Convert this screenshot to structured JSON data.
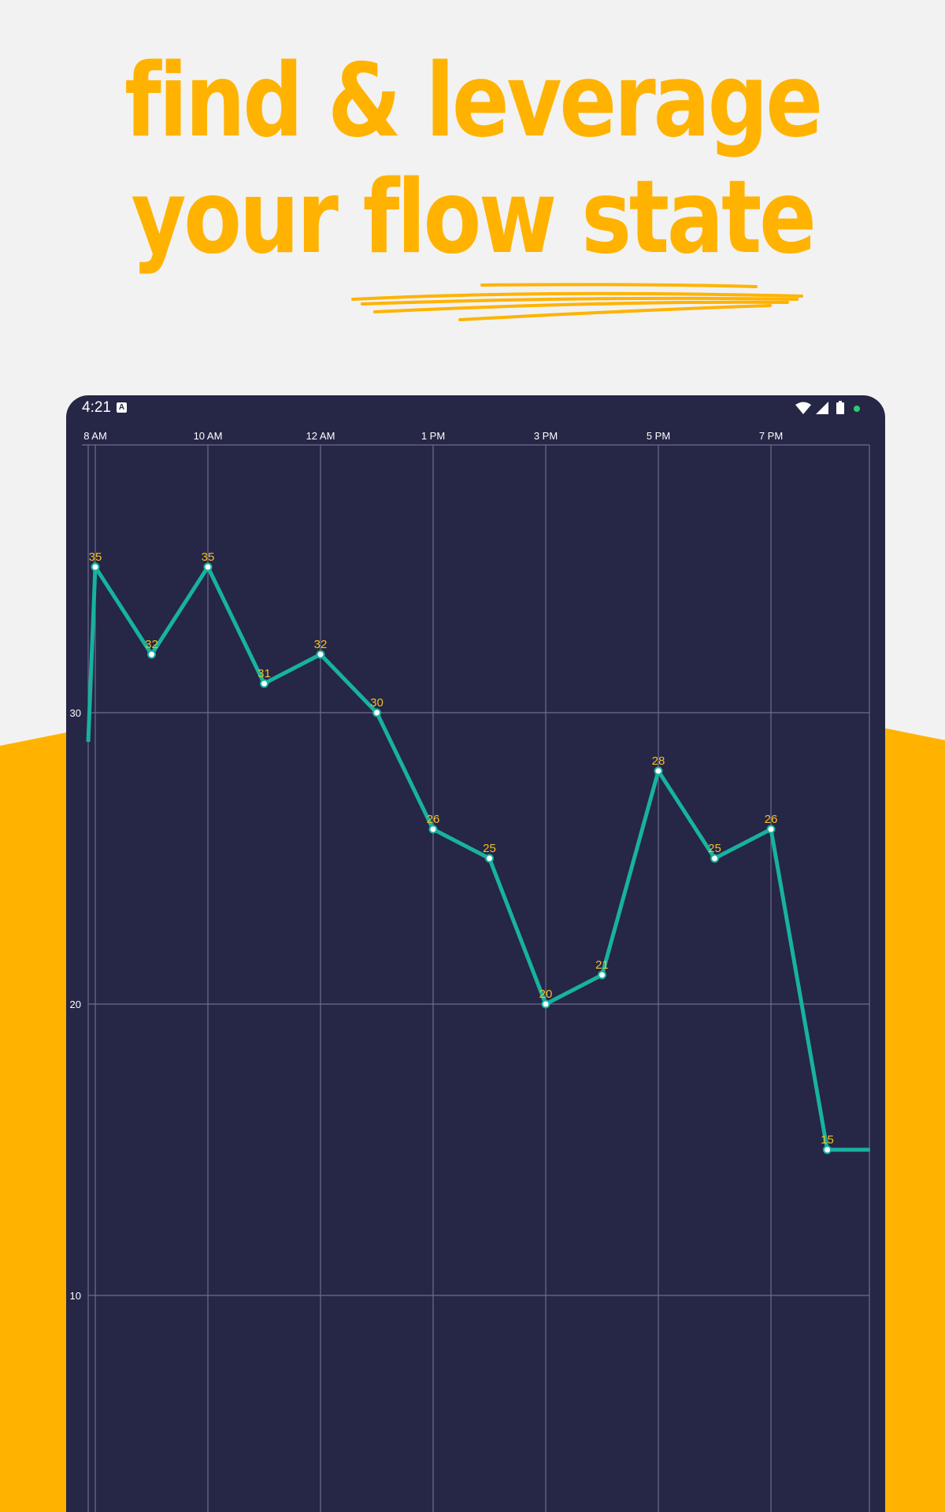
{
  "headline": {
    "line1": "find & leverage",
    "line2": "your flow state",
    "color": "#FFB300"
  },
  "status_bar": {
    "time": "4:21",
    "notification_icon": "a-icon",
    "icons": [
      "wifi-icon",
      "signal-icon",
      "battery-icon",
      "dot-icon"
    ]
  },
  "colors": {
    "background": "#f2f2f2",
    "accent": "#FFB300",
    "device": "#262646",
    "line": "#17B2A0",
    "label": "#F2C122"
  },
  "chart_data": {
    "type": "line",
    "x_tick_labels": [
      "8 AM",
      "10 AM",
      "12 AM",
      "1 PM",
      "3 PM",
      "5 PM",
      "7 PM"
    ],
    "y_tick_labels": [
      "30",
      "20",
      "10"
    ],
    "y_ticks": [
      30,
      20,
      10
    ],
    "series": [
      {
        "points": [
          {
            "x": 0.0,
            "y": 35,
            "label": "35"
          },
          {
            "x": 0.5,
            "y": 32,
            "label": "32"
          },
          {
            "x": 1.0,
            "y": 35,
            "label": "35"
          },
          {
            "x": 1.5,
            "y": 31,
            "label": "31"
          },
          {
            "x": 2.0,
            "y": 32,
            "label": "32"
          },
          {
            "x": 2.5,
            "y": 30,
            "label": "30"
          },
          {
            "x": 3.0,
            "y": 26,
            "label": "26"
          },
          {
            "x": 3.5,
            "y": 25,
            "label": "25"
          },
          {
            "x": 4.0,
            "y": 20,
            "label": "20"
          },
          {
            "x": 4.5,
            "y": 21,
            "label": "21"
          },
          {
            "x": 5.0,
            "y": 28,
            "label": "28"
          },
          {
            "x": 5.5,
            "y": 25,
            "label": "25"
          },
          {
            "x": 6.0,
            "y": 26,
            "label": "26"
          },
          {
            "x": 6.5,
            "y": 15,
            "label": "15"
          }
        ],
        "lead_in_y": 29,
        "tail_end_x": 6.88,
        "tail_end_y": 15
      }
    ],
    "grid": true,
    "x_index_range": [
      -0.07,
      6.88
    ]
  }
}
